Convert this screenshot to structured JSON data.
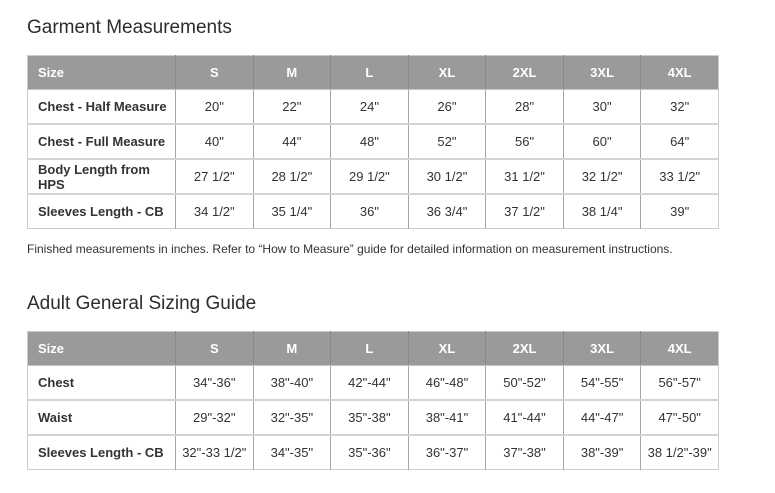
{
  "colors": {
    "header_bg": "#9a9a9a",
    "header_text": "#ffffff",
    "header_divider": "#878787",
    "column_divider": "#a6a6a6",
    "row_divider": "#d4d4d4",
    "body_text": "#333333",
    "title_text": "#2d2d2d"
  },
  "garment_table": {
    "title": "Garment Measurements",
    "columns": [
      "Size",
      "S",
      "M",
      "L",
      "XL",
      "2XL",
      "3XL",
      "4XL"
    ],
    "rows": [
      {
        "label": "Chest - Half Measure",
        "values": [
          "20\"",
          "22\"",
          "24\"",
          "26\"",
          "28\"",
          "30\"",
          "32\""
        ]
      },
      {
        "label": "Chest - Full Measure",
        "values": [
          "40\"",
          "44\"",
          "48\"",
          "52\"",
          "56\"",
          "60\"",
          "64\""
        ]
      },
      {
        "label": "Body Length from HPS",
        "values": [
          "27 1/2\"",
          "28 1/2\"",
          "29 1/2\"",
          "30 1/2\"",
          "31 1/2\"",
          "32 1/2\"",
          "33 1/2\""
        ]
      },
      {
        "label": "Sleeves Length - CB",
        "values": [
          "34 1/2\"",
          "35 1/4\"",
          "36\"",
          "36 3/4\"",
          "37 1/2\"",
          "38 1/4\"",
          "39\""
        ]
      }
    ],
    "footnote": "Finished measurements in inches. Refer to “How to Measure” guide for detailed information on measurement instructions."
  },
  "adult_table": {
    "title": "Adult General Sizing Guide",
    "columns": [
      "Size",
      "S",
      "M",
      "L",
      "XL",
      "2XL",
      "3XL",
      "4XL"
    ],
    "rows": [
      {
        "label": "Chest",
        "values": [
          "34\"-36\"",
          "38\"-40\"",
          "42\"-44\"",
          "46\"-48\"",
          "50\"-52\"",
          "54\"-55\"",
          "56\"-57\""
        ]
      },
      {
        "label": "Waist",
        "values": [
          "29\"-32\"",
          "32\"-35\"",
          "35\"-38\"",
          "38\"-41\"",
          "41\"-44\"",
          "44\"-47\"",
          "47\"-50\""
        ]
      },
      {
        "label": "Sleeves Length - CB",
        "values": [
          "32\"-33 1/2\"",
          "34\"-35\"",
          "35\"-36\"",
          "36\"-37\"",
          "37\"-38\"",
          "38\"-39\"",
          "38 1/2\"-39\""
        ]
      }
    ]
  }
}
